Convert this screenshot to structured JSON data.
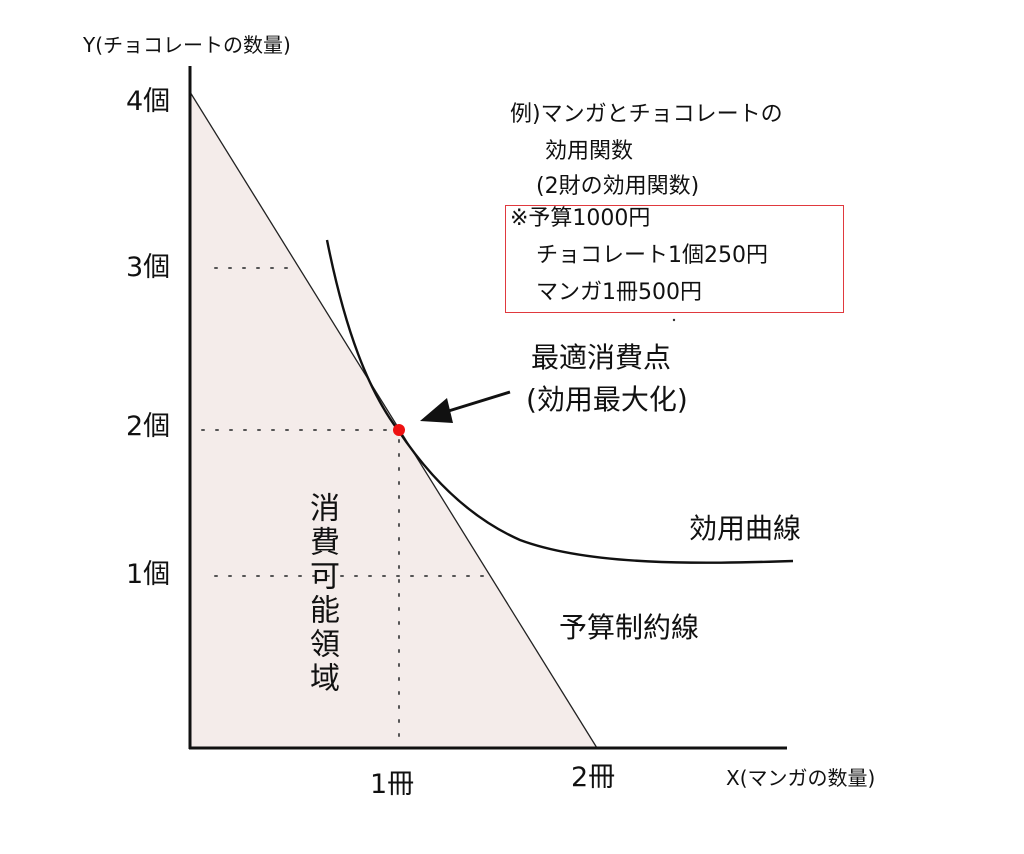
{
  "axes": {
    "y_label": "Y(チョコレートの数量)",
    "x_label": "X(マンガの数量)",
    "y_ticks": [
      "1個",
      "2個",
      "3個",
      "4個"
    ],
    "x_ticks": [
      "1冊",
      "2冊"
    ]
  },
  "note": {
    "line1": "例)マンガとチョコレートの",
    "line2": "効用関数",
    "line3": "(2財の効用関数)"
  },
  "budget_box": {
    "line1": "※予算1000円",
    "line2": "チョコレート1個250円",
    "line3": "マンガ1冊500円",
    "border_color": "#e0393e"
  },
  "optimum": {
    "label_line1": "最適消費点",
    "label_line2": "(効用最大化)",
    "x": 1,
    "y": 2,
    "color": "#ee1111"
  },
  "labels": {
    "utility_curve": "効用曲線",
    "budget_line": "予算制約線",
    "feasible_region": "消費可能領域"
  },
  "colors": {
    "feasible_fill": "#f4ecea"
  }
}
